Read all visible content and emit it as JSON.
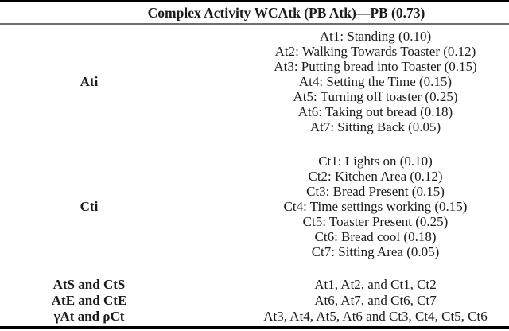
{
  "table": {
    "title": "Complex Activity WCAtk (PB Atk)—PB (0.73)",
    "rows": [
      {
        "label": "Ati",
        "lines": [
          "At1: Standing (0.10)",
          "At2: Walking Towards Toaster (0.12)",
          "At3: Putting bread into Toaster (0.15)",
          "At4: Setting the Time (0.15)",
          "At5: Turning off toaster (0.25)",
          "At6: Taking out bread (0.18)",
          "At7: Sitting Back (0.05)"
        ]
      },
      {
        "label": "Cti",
        "lines": [
          "Ct1: Lights on (0.10)",
          "Ct2: Kitchen Area (0.12)",
          "Ct3: Bread Present (0.15)",
          "Ct4: Time settings working (0.15)",
          "Ct5: Toaster Present (0.25)",
          "Ct6: Bread cool (0.18)",
          "Ct7: Sitting Area (0.05)"
        ]
      }
    ],
    "footer_rows": [
      {
        "label": "AtS and CtS",
        "value": "At1, At2, and Ct1, Ct2"
      },
      {
        "label": "AtE and CtE",
        "value": "At6, At7, and Ct6, Ct7"
      },
      {
        "label": "γAt and ρCt",
        "value": "At3, At4, At5, At6 and Ct3, Ct4, Ct5, Ct6"
      }
    ],
    "colors": {
      "text": "#1b1b1b",
      "heavy_rule": "#000000",
      "light_rule": "#6e6e6e"
    }
  }
}
